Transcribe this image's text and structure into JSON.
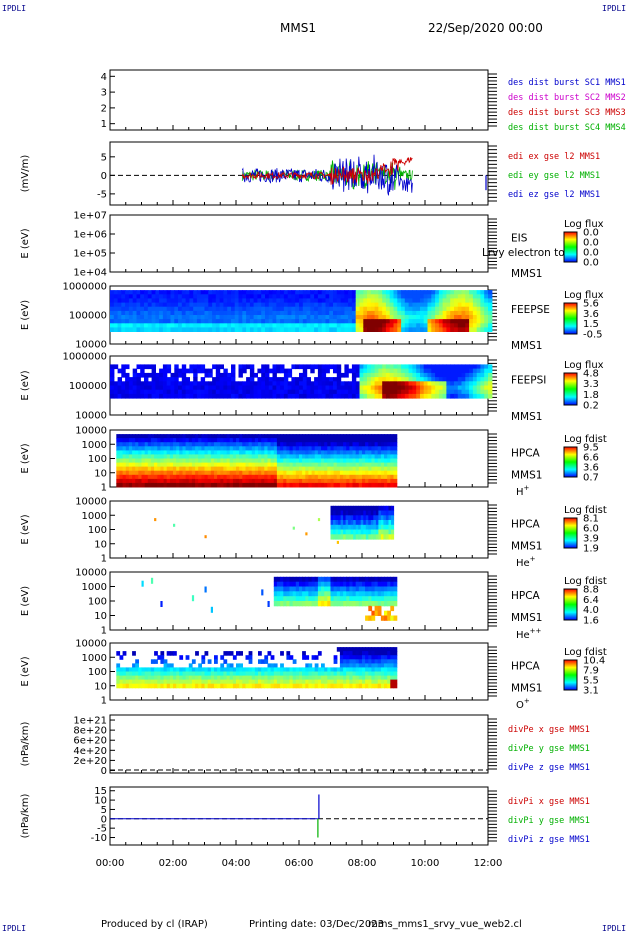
{
  "header": {
    "corner_label": "IPDLI",
    "title": "MMS1",
    "date": "22/Sep/2020 00:00"
  },
  "footer": {
    "produced_by": "Produced by cl (IRAP)",
    "printing_date": "Printing date: 03/Dec/2023",
    "script_name": "mms_mms1_srvy_vue_web2.cl"
  },
  "colors": {
    "mms1": "#0000cc",
    "mms2": "#cc00cc",
    "mms3": "#cc0000",
    "mms4": "#00b000",
    "red": "#cc0000",
    "green": "#00b000",
    "blue": "#0000cc"
  },
  "chart_data": {
    "type": "multi-panel time series",
    "x_tick_labels": [
      "00:00",
      "02:00",
      "04:00",
      "06:00",
      "08:00",
      "10:00",
      "12:00"
    ],
    "xlim_hours": [
      0,
      12
    ],
    "panels": [
      {
        "id": "p1",
        "type": "line",
        "ylabel": "",
        "yticks": [
          "4",
          "3",
          "2",
          "1"
        ],
        "ylim": [
          0.6,
          4.4
        ],
        "legend": [
          {
            "text": "des dist burst SC1 MMS1",
            "color": "mms1"
          },
          {
            "text": "des dist burst SC2 MMS2",
            "color": "mms2"
          },
          {
            "text": "des dist burst SC3 MMS3",
            "color": "mms3"
          },
          {
            "text": "des dist burst SC4 MMS4",
            "color": "mms4"
          }
        ]
      },
      {
        "id": "p2",
        "type": "line",
        "ylabel": "(mV/m)",
        "yticks": [
          "5",
          "0",
          "-5"
        ],
        "ylim": [
          -8,
          9
        ],
        "zero_line": true,
        "data_range_hours": [
          4.2,
          9.6
        ],
        "legend": [
          {
            "text": "edi ex gse l2 MMS1",
            "color": "red"
          },
          {
            "text": "edi ey gse l2 MMS1",
            "color": "green"
          },
          {
            "text": "edi ez gse l2 MMS1",
            "color": "blue"
          }
        ]
      },
      {
        "id": "p3",
        "type": "spectrogram",
        "ylabel": "E (eV)",
        "yticks": [
          "1e+07",
          "1e+06",
          "1e+05",
          "1e+04"
        ],
        "instrument": [
          "EIS",
          "MMS1"
        ],
        "overlay_text": "Lrvy electron to",
        "colorbar_title": "Log flux",
        "colorbar_ticks": [
          "0.0",
          "0.0",
          "0.0",
          "0.0"
        ]
      },
      {
        "id": "p4",
        "type": "spectrogram",
        "ylabel": "E (eV)",
        "yticks": [
          "1000000",
          "100000",
          "10000"
        ],
        "instrument": [
          "FEEPSE",
          "MMS1"
        ],
        "colorbar_title": "Log flux",
        "colorbar_ticks": [
          "5.6",
          "3.6",
          "1.5",
          "-0.5"
        ]
      },
      {
        "id": "p5",
        "type": "spectrogram",
        "ylabel": "E (eV)",
        "yticks": [
          "1000000",
          "100000",
          "10000"
        ],
        "instrument": [
          "FEEPSI",
          "MMS1"
        ],
        "colorbar_title": "Log flux",
        "colorbar_ticks": [
          "4.8",
          "3.3",
          "1.8",
          "0.2"
        ]
      },
      {
        "id": "p6",
        "type": "spectrogram",
        "ylabel": "E (eV)",
        "yticks": [
          "10000",
          "1000",
          "100",
          "10",
          "1"
        ],
        "instrument": [
          "HPCA",
          "MMS1"
        ],
        "species": "H",
        "species_sup": "+",
        "colorbar_title": "Log fdist",
        "colorbar_ticks": [
          "9.5",
          "6.6",
          "3.6",
          "0.7"
        ]
      },
      {
        "id": "p7",
        "type": "spectrogram",
        "ylabel": "E (eV)",
        "yticks": [
          "10000",
          "1000",
          "100",
          "10",
          "1"
        ],
        "instrument": [
          "HPCA",
          "MMS1"
        ],
        "species": "He",
        "species_sup": "+",
        "colorbar_title": "Log fdist",
        "colorbar_ticks": [
          "8.1",
          "6.0",
          "3.9",
          "1.9"
        ]
      },
      {
        "id": "p8",
        "type": "spectrogram",
        "ylabel": "E (eV)",
        "yticks": [
          "10000",
          "1000",
          "100",
          "10",
          "1"
        ],
        "instrument": [
          "HPCA",
          "MMS1"
        ],
        "species": "He",
        "species_sup": "++",
        "colorbar_title": "Log fdist",
        "colorbar_ticks": [
          "8.8",
          "6.4",
          "4.0",
          "1.6"
        ]
      },
      {
        "id": "p9",
        "type": "spectrogram",
        "ylabel": "E (eV)",
        "yticks": [
          "10000",
          "1000",
          "100",
          "10",
          "1"
        ],
        "instrument": [
          "HPCA",
          "MMS1"
        ],
        "species": "O",
        "species_sup": "+",
        "colorbar_title": "Log fdist",
        "colorbar_ticks": [
          "10.4",
          "7.9",
          "5.5",
          "3.1"
        ]
      },
      {
        "id": "p10",
        "type": "line",
        "ylabel": "(nPa/km)",
        "yticks": [
          "1e+21",
          "8e+20",
          "6e+20",
          "4e+20",
          "2e+20",
          "0"
        ],
        "ylim": [
          -0.05,
          1.1
        ],
        "zero_line": true,
        "legend": [
          {
            "text": "divPe x gse MMS1",
            "color": "red"
          },
          {
            "text": "divPe y gse MMS1",
            "color": "green"
          },
          {
            "text": "divPe z gse MMS1",
            "color": "blue"
          }
        ]
      },
      {
        "id": "p11",
        "type": "line",
        "ylabel": "(nPa/km)",
        "yticks": [
          "15",
          "10",
          "5",
          "0",
          "-5",
          "-10"
        ],
        "ylim": [
          -14,
          17
        ],
        "zero_line": true,
        "spike_hour": 6.6,
        "legend": [
          {
            "text": "divPi x gse MMS1",
            "color": "red"
          },
          {
            "text": "divPi y gse MMS1",
            "color": "green"
          },
          {
            "text": "divPi z gse MMS1",
            "color": "blue"
          }
        ]
      }
    ]
  }
}
